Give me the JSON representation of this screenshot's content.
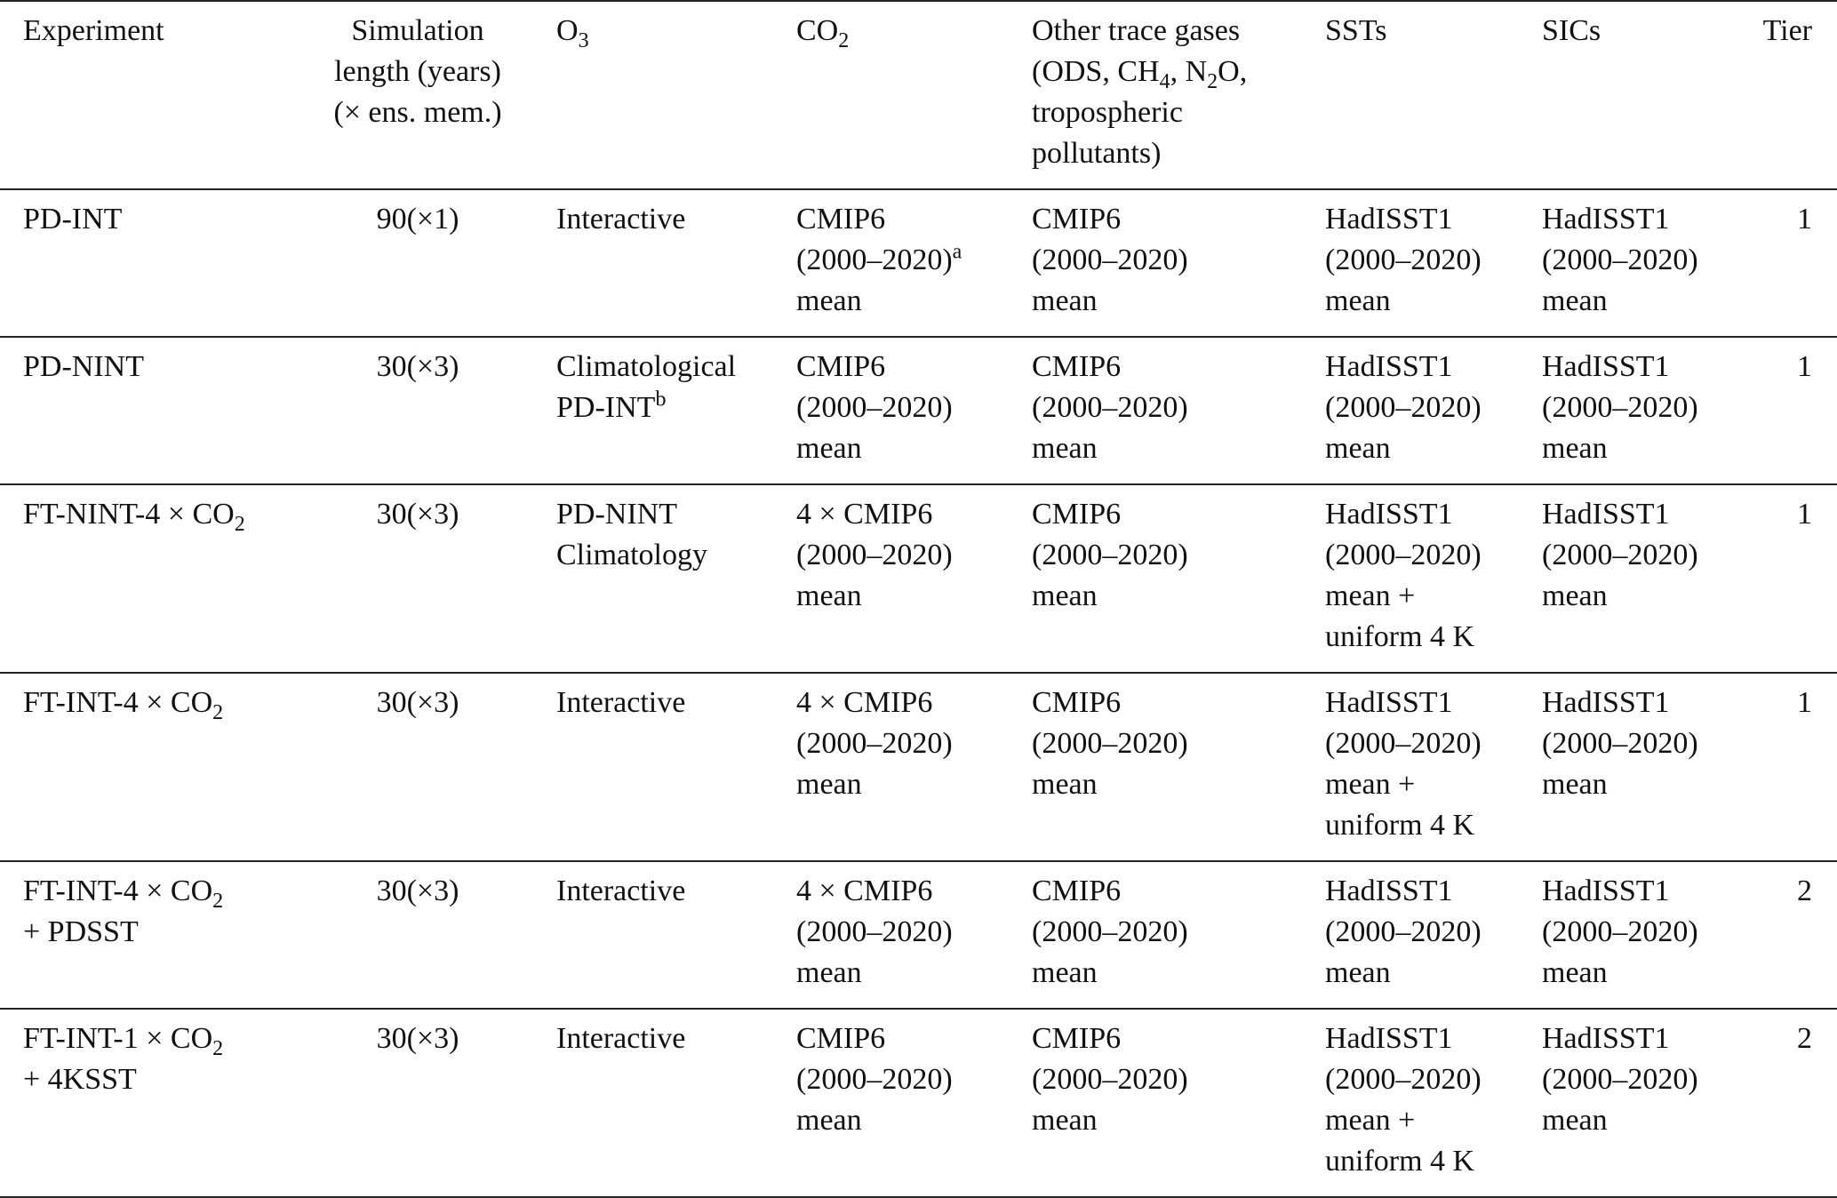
{
  "header": [
    [
      "Experiment"
    ],
    [
      "Simulation",
      "length (years)",
      "(× ens. mem.)"
    ],
    [
      [
        "O",
        {
          "sub": "3"
        }
      ]
    ],
    [
      [
        "CO",
        {
          "sub": "2"
        }
      ]
    ],
    [
      "Other trace gases",
      [
        "(ODS, CH",
        {
          "sub": "4"
        },
        ", N",
        {
          "sub": "2"
        },
        "O,"
      ],
      "tropospheric",
      "pollutants)"
    ],
    [
      "SSTs"
    ],
    [
      "SICs"
    ],
    [
      "Tier"
    ]
  ],
  "rows": [
    [
      [
        "PD-INT"
      ],
      [
        "90(×1)"
      ],
      [
        "Interactive"
      ],
      [
        "CMIP6",
        [
          "(2000–2020)",
          {
            "sup": "a"
          }
        ],
        "mean"
      ],
      [
        "CMIP6",
        "(2000–2020)",
        "mean"
      ],
      [
        "HadISST1",
        "(2000–2020)",
        "mean"
      ],
      [
        "HadISST1",
        "(2000–2020)",
        "mean"
      ],
      [
        "1"
      ]
    ],
    [
      [
        "PD-NINT"
      ],
      [
        "30(×3)"
      ],
      [
        "Climatological",
        [
          "PD-INT",
          {
            "sup": "b"
          }
        ]
      ],
      [
        "CMIP6",
        "(2000–2020)",
        "mean"
      ],
      [
        "CMIP6",
        "(2000–2020)",
        "mean"
      ],
      [
        "HadISST1",
        "(2000–2020)",
        "mean"
      ],
      [
        "HadISST1",
        "(2000–2020)",
        "mean"
      ],
      [
        "1"
      ]
    ],
    [
      [
        [
          "FT-NINT-4 × CO",
          {
            "sub": "2"
          }
        ]
      ],
      [
        "30(×3)"
      ],
      [
        "PD-NINT",
        "Climatology"
      ],
      [
        "4 × CMIP6",
        "(2000–2020)",
        "mean"
      ],
      [
        "CMIP6",
        "(2000–2020)",
        "mean"
      ],
      [
        "HadISST1",
        "(2000–2020)",
        "mean +",
        "uniform 4 K"
      ],
      [
        "HadISST1",
        "(2000–2020)",
        "mean"
      ],
      [
        "1"
      ]
    ],
    [
      [
        [
          "FT-INT-4 × CO",
          {
            "sub": "2"
          }
        ]
      ],
      [
        "30(×3)"
      ],
      [
        "Interactive"
      ],
      [
        "4 × CMIP6",
        "(2000–2020)",
        "mean"
      ],
      [
        "CMIP6",
        "(2000–2020)",
        "mean"
      ],
      [
        "HadISST1",
        "(2000–2020)",
        "mean +",
        "uniform 4 K"
      ],
      [
        "HadISST1",
        "(2000–2020)",
        "mean"
      ],
      [
        "1"
      ]
    ],
    [
      [
        [
          "FT-INT-4 × CO",
          {
            "sub": "2"
          }
        ],
        "+ PDSST"
      ],
      [
        "30(×3)"
      ],
      [
        "Interactive"
      ],
      [
        "4 × CMIP6",
        "(2000–2020)",
        "mean"
      ],
      [
        "CMIP6",
        "(2000–2020)",
        "mean"
      ],
      [
        "HadISST1",
        "(2000–2020)",
        "mean"
      ],
      [
        "HadISST1",
        "(2000–2020)",
        "mean"
      ],
      [
        "2"
      ]
    ],
    [
      [
        [
          "FT-INT-1 × CO",
          {
            "sub": "2"
          }
        ],
        "+ 4KSST"
      ],
      [
        "30(×3)"
      ],
      [
        "Interactive"
      ],
      [
        "CMIP6",
        "(2000–2020)",
        "mean"
      ],
      [
        "CMIP6",
        "(2000–2020)",
        "mean"
      ],
      [
        "HadISST1",
        "(2000–2020)",
        "mean +",
        "uniform 4 K"
      ],
      [
        "HadISST1",
        "(2000–2020)",
        "mean"
      ],
      [
        "2"
      ]
    ]
  ]
}
